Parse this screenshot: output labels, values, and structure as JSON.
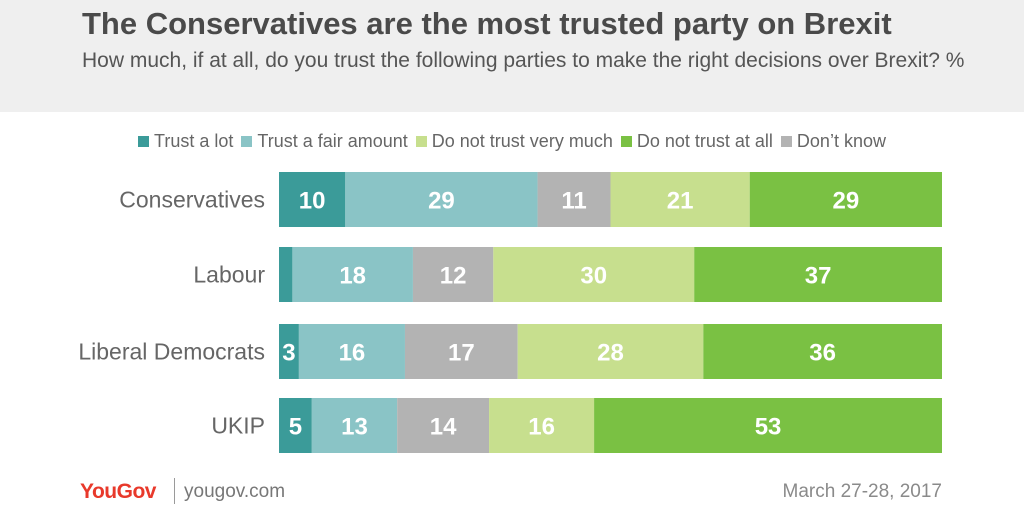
{
  "header": {
    "title": "The Conservatives are the most trusted party on Brexit",
    "subtitle": "How much, if at all, do you trust the following parties to make the right decisions over Brexit? %"
  },
  "footer": {
    "brand": "YouGov",
    "website": "yougov.com",
    "date": "March 27-28, 2017"
  },
  "colors": {
    "background": "#ffffff",
    "header_band": "#efefef",
    "label_text": "#ffffff",
    "brand_red": "#e8392b"
  },
  "chart_data": {
    "type": "bar",
    "orientation": "horizontal",
    "stacked": true,
    "title": "The Conservatives are the most trusted party on Brexit",
    "subtitle": "How much, if at all, do you trust the following parties to make the right decisions over Brexit? %",
    "categories": [
      "Conservatives",
      "Labour",
      "Liberal Democrats",
      "UKIP"
    ],
    "legend_position": "top",
    "legend": [
      {
        "label": "Trust a lot",
        "color": "#3b9b99"
      },
      {
        "label": "Trust a fair amount",
        "color": "#8ac4c6"
      },
      {
        "label": "Do not trust very much",
        "color": "#c7df8e"
      },
      {
        "label": "Do not trust at all",
        "color": "#7ac143"
      },
      {
        "label": "Don’t know",
        "color": "#b3b3b3"
      }
    ],
    "stack_order": [
      "Trust a lot",
      "Trust a fair amount",
      "Don’t know",
      "Do not trust very much",
      "Do not trust at all"
    ],
    "series": [
      {
        "name": "Trust a lot",
        "color": "#3b9b99",
        "values": [
          10,
          2,
          3,
          5
        ],
        "labels": [
          "10",
          "",
          "3",
          "5"
        ]
      },
      {
        "name": "Trust a fair amount",
        "color": "#8ac4c6",
        "values": [
          29,
          18,
          16,
          13
        ],
        "labels": [
          "29",
          "18",
          "16",
          "13"
        ]
      },
      {
        "name": "Don’t know",
        "color": "#b3b3b3",
        "values": [
          11,
          12,
          17,
          14
        ],
        "labels": [
          "11",
          "12",
          "17",
          "14"
        ]
      },
      {
        "name": "Do not trust very much",
        "color": "#c7df8e",
        "values": [
          21,
          30,
          28,
          16
        ],
        "labels": [
          "21",
          "30",
          "28",
          "16"
        ]
      },
      {
        "name": "Do not trust at all",
        "color": "#7ac143",
        "values": [
          29,
          37,
          36,
          53
        ],
        "labels": [
          "29",
          "37",
          "36",
          "53"
        ]
      }
    ],
    "xlim": [
      0,
      100
    ],
    "grid": false
  }
}
